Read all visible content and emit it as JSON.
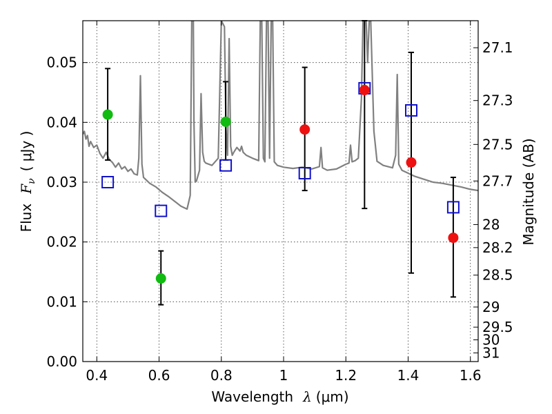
{
  "chart_data": {
    "type": "scatter",
    "xlabel_text": "Wavelength",
    "xlabel_symbol": "λ",
    "xlabel_unit": "(μm)",
    "ylabel_text": "Flux",
    "ylabel_symbol": "F",
    "ylabel_subscript": "ν",
    "ylabel_unit": "( μJy )",
    "y2label": "Magnitude (AB)",
    "xlim": [
      0.355,
      1.625
    ],
    "ylim": [
      0.0,
      0.057
    ],
    "grid": true,
    "xticks": [
      {
        "value": 0.4,
        "label": "0.4"
      },
      {
        "value": 0.6,
        "label": "0.6"
      },
      {
        "value": 0.8,
        "label": "0.8"
      },
      {
        "value": 1.0,
        "label": "1"
      },
      {
        "value": 1.2,
        "label": "1.2"
      },
      {
        "value": 1.4,
        "label": "1.4"
      },
      {
        "value": 1.6,
        "label": "1.6"
      }
    ],
    "yticks": [
      {
        "value": 0.0,
        "label": "0.00"
      },
      {
        "value": 0.01,
        "label": "0.01"
      },
      {
        "value": 0.02,
        "label": "0.02"
      },
      {
        "value": 0.03,
        "label": "0.03"
      },
      {
        "value": 0.04,
        "label": "0.04"
      },
      {
        "value": 0.05,
        "label": "0.05"
      }
    ],
    "magnitude_ticks": [
      {
        "mag": 27.1,
        "label": "27.1"
      },
      {
        "mag": 27.3,
        "label": "27.3"
      },
      {
        "mag": 27.5,
        "label": "27.5"
      },
      {
        "mag": 27.7,
        "label": "27.7"
      },
      {
        "mag": 28.0,
        "label": "28"
      },
      {
        "mag": 28.2,
        "label": "28.2"
      },
      {
        "mag": 28.5,
        "label": "28.5"
      },
      {
        "mag": 29.0,
        "label": "29"
      },
      {
        "mag": 29.5,
        "label": "29.5"
      },
      {
        "mag": 30.0,
        "label": "30"
      },
      {
        "mag": 31.0,
        "label": "31"
      }
    ],
    "series": [
      {
        "name": "observed-green",
        "marker": "circle",
        "color": "#11bb11",
        "points": [
          {
            "x": 0.435,
            "y": 0.0413,
            "ylo": 0.0337,
            "yhi": 0.049
          },
          {
            "x": 0.606,
            "y": 0.0139,
            "ylo": 0.0095,
            "yhi": 0.0185
          },
          {
            "x": 0.814,
            "y": 0.0401,
            "ylo": 0.0337,
            "yhi": 0.0468
          }
        ]
      },
      {
        "name": "observed-red",
        "marker": "circle",
        "color": "#ee1111",
        "points": [
          {
            "x": 1.068,
            "y": 0.0388,
            "ylo": 0.0286,
            "yhi": 0.0492
          },
          {
            "x": 1.26,
            "y": 0.0454,
            "ylo": 0.0256,
            "yhi": 0.057
          },
          {
            "x": 1.41,
            "y": 0.0333,
            "ylo": 0.0148,
            "yhi": 0.0517
          },
          {
            "x": 1.545,
            "y": 0.0207,
            "ylo": 0.0108,
            "yhi": 0.0308
          }
        ]
      },
      {
        "name": "model-photometry",
        "marker": "square",
        "color": "#1111cc",
        "points": [
          {
            "x": 0.435,
            "y": 0.03
          },
          {
            "x": 0.606,
            "y": 0.0252
          },
          {
            "x": 0.814,
            "y": 0.0328
          },
          {
            "x": 1.068,
            "y": 0.0315
          },
          {
            "x": 1.26,
            "y": 0.0457
          },
          {
            "x": 1.41,
            "y": 0.042
          },
          {
            "x": 1.545,
            "y": 0.0258
          }
        ]
      }
    ],
    "model_spectrum": {
      "name": "template-spectrum",
      "color": "#808080",
      "x": [
        0.355,
        0.36,
        0.365,
        0.37,
        0.375,
        0.38,
        0.39,
        0.4,
        0.41,
        0.42,
        0.43,
        0.44,
        0.45,
        0.46,
        0.47,
        0.48,
        0.49,
        0.5,
        0.51,
        0.52,
        0.53,
        0.535,
        0.54,
        0.545,
        0.55,
        0.57,
        0.59,
        0.61,
        0.63,
        0.65,
        0.67,
        0.69,
        0.7,
        0.705,
        0.71,
        0.712,
        0.716,
        0.72,
        0.73,
        0.735,
        0.74,
        0.745,
        0.75,
        0.77,
        0.79,
        0.8,
        0.81,
        0.815,
        0.82,
        0.825,
        0.83,
        0.835,
        0.84,
        0.85,
        0.86,
        0.865,
        0.87,
        0.88,
        0.9,
        0.92,
        0.925,
        0.93,
        0.935,
        0.94,
        0.945,
        0.95,
        0.955,
        0.96,
        0.965,
        0.97,
        0.98,
        1.0,
        1.03,
        1.06,
        1.09,
        1.115,
        1.12,
        1.125,
        1.14,
        1.17,
        1.2,
        1.21,
        1.215,
        1.22,
        1.23,
        1.24,
        1.25,
        1.255,
        1.26,
        1.265,
        1.27,
        1.275,
        1.28,
        1.29,
        1.3,
        1.32,
        1.35,
        1.36,
        1.365,
        1.37,
        1.38,
        1.4,
        1.42,
        1.45,
        1.48,
        1.51,
        1.54,
        1.57,
        1.6,
        1.625
      ],
      "y": [
        0.038,
        0.0385,
        0.0372,
        0.0378,
        0.036,
        0.0368,
        0.0358,
        0.0362,
        0.0348,
        0.034,
        0.035,
        0.0338,
        0.0333,
        0.0325,
        0.0332,
        0.0322,
        0.0326,
        0.0318,
        0.0322,
        0.0314,
        0.0312,
        0.034,
        0.0478,
        0.033,
        0.0308,
        0.0298,
        0.0292,
        0.0283,
        0.0276,
        0.0268,
        0.026,
        0.0255,
        0.0278,
        0.057,
        0.057,
        0.04,
        0.03,
        0.0302,
        0.032,
        0.0448,
        0.035,
        0.0335,
        0.0332,
        0.0328,
        0.034,
        0.057,
        0.056,
        0.039,
        0.0345,
        0.054,
        0.036,
        0.0345,
        0.035,
        0.0358,
        0.0352,
        0.036,
        0.035,
        0.0345,
        0.034,
        0.0336,
        0.057,
        0.057,
        0.034,
        0.0334,
        0.057,
        0.057,
        0.034,
        0.057,
        0.057,
        0.0334,
        0.0328,
        0.0325,
        0.0323,
        0.0325,
        0.0322,
        0.0326,
        0.0358,
        0.0324,
        0.032,
        0.0322,
        0.033,
        0.0332,
        0.0362,
        0.0334,
        0.0336,
        0.034,
        0.044,
        0.057,
        0.057,
        0.057,
        0.05,
        0.057,
        0.057,
        0.0385,
        0.0335,
        0.0328,
        0.0324,
        0.0345,
        0.048,
        0.033,
        0.032,
        0.0315,
        0.031,
        0.0305,
        0.03,
        0.0298,
        0.0295,
        0.0292,
        0.0288,
        0.0286
      ]
    }
  }
}
